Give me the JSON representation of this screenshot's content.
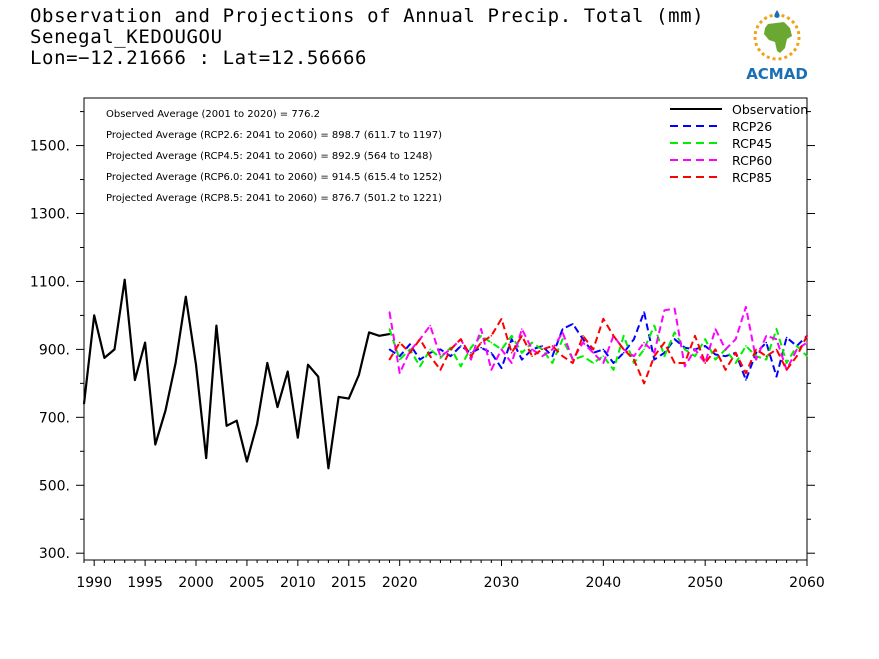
{
  "header": {
    "title": "Observation and Projections of Annual Precip. Total (mm)",
    "location": "Senegal_KEDOUGOU",
    "coords": "Lon=−12.21666 : Lat=12.56666"
  },
  "logo": {
    "text": "ACMAD",
    "accent": "#1a6fb5",
    "africa_color": "#6aa832",
    "ring_color": "#f0a21a"
  },
  "annotations": [
    "Observed Average (2001 to 2020) = 776.2",
    "Projected Average (RCP2.6: 2041 to 2060) = 898.7 (611.7 to 1197)",
    "Projected Average (RCP4.5: 2041 to 2060) = 892.9 (564 to 1248)",
    "Projected Average (RCP6.0: 2041 to 2060) = 914.5 (615.4 to 1252)",
    "Projected Average (RCP8.5: 2041 to 2060) = 876.7 (501.2 to 1221)"
  ],
  "chart_data": {
    "type": "line",
    "title": "Observation and Projections of Annual Precip. Total (mm)",
    "xlabel": "",
    "ylabel": "",
    "xlim": [
      1989,
      2060
    ],
    "ylim": [
      280,
      1640
    ],
    "grid": false,
    "legend_position": "top-right",
    "x_ticks": [
      {
        "value": 1990,
        "label": "1990"
      },
      {
        "value": 1995,
        "label": "1995"
      },
      {
        "value": 2000,
        "label": "2000"
      },
      {
        "value": 2005,
        "label": "2005"
      },
      {
        "value": 2010,
        "label": "2010"
      },
      {
        "value": 2015,
        "label": "2015"
      },
      {
        "value": 2020,
        "label": "2020"
      },
      {
        "value": 2030,
        "label": "2030"
      },
      {
        "value": 2040,
        "label": "2040"
      },
      {
        "value": 2050,
        "label": "2050"
      },
      {
        "value": 2060,
        "label": "2060"
      }
    ],
    "y_ticks": [
      {
        "value": 300,
        "label": "300."
      },
      {
        "value": 500,
        "label": "500."
      },
      {
        "value": 700,
        "label": "700."
      },
      {
        "value": 900,
        "label": "900."
      },
      {
        "value": 1100,
        "label": "1100."
      },
      {
        "value": 1300,
        "label": "1300."
      },
      {
        "value": 1500,
        "label": "1500."
      }
    ],
    "series": [
      {
        "name": "Observation",
        "color": "#000000",
        "dashed": false,
        "x": [
          1989,
          1990,
          1991,
          1992,
          1993,
          1994,
          1995,
          1996,
          1997,
          1998,
          1999,
          2000,
          2001,
          2002,
          2003,
          2004,
          2005,
          2006,
          2007,
          2008,
          2009,
          2010,
          2011,
          2012,
          2013,
          2014,
          2015,
          2016,
          2017,
          2018,
          2019
        ],
        "y": [
          740,
          1000,
          875,
          900,
          1105,
          810,
          920,
          620,
          720,
          860,
          1055,
          855,
          580,
          970,
          675,
          690,
          570,
          680,
          860,
          730,
          835,
          640,
          855,
          820,
          550,
          760,
          755,
          825,
          950,
          940,
          945
        ]
      },
      {
        "name": "RCP26",
        "color": "#0000ff",
        "dashed": true,
        "x": [
          2019,
          2020,
          2021,
          2022,
          2023,
          2024,
          2025,
          2026,
          2027,
          2028,
          2029,
          2030,
          2031,
          2032,
          2033,
          2034,
          2035,
          2036,
          2037,
          2038,
          2039,
          2040,
          2041,
          2042,
          2043,
          2044,
          2045,
          2046,
          2047,
          2048,
          2049,
          2050,
          2051,
          2052,
          2053,
          2054,
          2055,
          2056,
          2057,
          2058,
          2059,
          2060
        ],
        "y": [
          900,
          880,
          915,
          870,
          890,
          900,
          880,
          910,
          890,
          905,
          890,
          845,
          930,
          870,
          900,
          910,
          880,
          960,
          975,
          930,
          890,
          900,
          860,
          890,
          930,
          1010,
          870,
          890,
          930,
          905,
          900,
          910,
          885,
          880,
          890,
          810,
          890,
          920,
          820,
          935,
          910,
          940
        ]
      },
      {
        "name": "RCP45",
        "color": "#00ee00",
        "dashed": true,
        "x": [
          2019,
          2020,
          2021,
          2022,
          2023,
          2024,
          2025,
          2026,
          2027,
          2028,
          2029,
          2030,
          2031,
          2032,
          2033,
          2034,
          2035,
          2036,
          2037,
          2038,
          2039,
          2040,
          2041,
          2042,
          2043,
          2044,
          2045,
          2046,
          2047,
          2048,
          2049,
          2050,
          2051,
          2052,
          2053,
          2054,
          2055,
          2056,
          2057,
          2058,
          2059,
          2060
        ],
        "y": [
          960,
          870,
          900,
          850,
          900,
          875,
          905,
          850,
          905,
          940,
          920,
          900,
          940,
          890,
          920,
          900,
          860,
          930,
          870,
          880,
          860,
          880,
          840,
          940,
          860,
          900,
          970,
          880,
          950,
          900,
          880,
          930,
          870,
          900,
          860,
          910,
          880,
          870,
          960,
          860,
          910,
          880
        ]
      },
      {
        "name": "RCP60",
        "color": "#ff00ff",
        "dashed": true,
        "x": [
          2019,
          2020,
          2021,
          2022,
          2023,
          2024,
          2025,
          2026,
          2027,
          2028,
          2029,
          2030,
          2031,
          2032,
          2033,
          2034,
          2035,
          2036,
          2037,
          2038,
          2039,
          2040,
          2041,
          2042,
          2043,
          2044,
          2045,
          2046,
          2047,
          2048,
          2049,
          2050,
          2051,
          2052,
          2053,
          2054,
          2055,
          2056,
          2057,
          2058,
          2059,
          2060
        ],
        "y": [
          1010,
          830,
          895,
          930,
          970,
          880,
          900,
          930,
          870,
          960,
          840,
          900,
          860,
          960,
          900,
          880,
          900,
          950,
          870,
          920,
          890,
          860,
          940,
          900,
          880,
          920,
          890,
          1015,
          1020,
          850,
          900,
          860,
          960,
          900,
          930,
          1025,
          870,
          940,
          930,
          840,
          900,
          920
        ]
      },
      {
        "name": "RCP85",
        "color": "#ff0000",
        "dashed": true,
        "x": [
          2019,
          2020,
          2021,
          2022,
          2023,
          2024,
          2025,
          2026,
          2027,
          2028,
          2029,
          2030,
          2031,
          2032,
          2033,
          2034,
          2035,
          2036,
          2037,
          2038,
          2039,
          2040,
          2041,
          2042,
          2043,
          2044,
          2045,
          2046,
          2047,
          2048,
          2049,
          2050,
          2051,
          2052,
          2053,
          2054,
          2055,
          2056,
          2057,
          2058,
          2059,
          2060
        ],
        "y": [
          870,
          920,
          890,
          930,
          880,
          840,
          900,
          930,
          880,
          920,
          940,
          990,
          890,
          940,
          880,
          900,
          910,
          880,
          860,
          940,
          900,
          990,
          940,
          900,
          870,
          800,
          880,
          920,
          860,
          860,
          940,
          860,
          900,
          840,
          890,
          830,
          900,
          880,
          900,
          840,
          880,
          940
        ]
      }
    ]
  }
}
